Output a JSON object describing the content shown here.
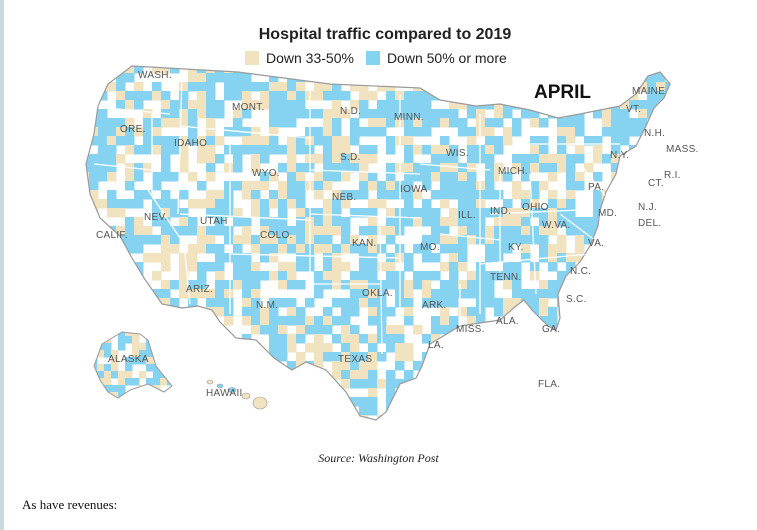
{
  "map": {
    "title": "Hospital traffic compared to 2019",
    "legend": [
      {
        "label": "Down 33-50%",
        "color": "#f2e3c0"
      },
      {
        "label": "Down 50% or more",
        "color": "#85d3f1"
      }
    ],
    "month": "APRIL",
    "state_labels": {
      "wash": "WASH.",
      "ore": "ORE.",
      "idaho": "IDAHO",
      "mont": "MONT.",
      "wyo": "WYO.",
      "nev": "NEV.",
      "calif": "CALIF.",
      "utah": "UTAH",
      "colo": "COLO.",
      "ariz": "ARIZ.",
      "nm": "N.M.",
      "nd": "N.D.",
      "sd": "S.D.",
      "neb": "NEB.",
      "kan": "KAN.",
      "okla": "OKLA.",
      "texas": "TEXAS",
      "minn": "MINN.",
      "iowa": "IOWA",
      "mo": "MO.",
      "ark": "ARK.",
      "la": "LA.",
      "wis": "WIS.",
      "ill": "ILL.",
      "mich": "MICH.",
      "ind": "IND.",
      "ohio": "OHIO",
      "ky": "KY.",
      "tenn": "TENN.",
      "miss": "MISS.",
      "ala": "ALA.",
      "ga": "GA.",
      "fla": "FLA.",
      "sc": "S.C.",
      "nc": "N.C.",
      "va": "VA.",
      "wva": "W.VA.",
      "pa": "PA.",
      "ny": "N.Y.",
      "md": "MD.",
      "nj": "N.J.",
      "del": "DEL.",
      "ct": "CT.",
      "ri": "R.I.",
      "mass": "MASS.",
      "vt": "VT.",
      "nh": "N.H.",
      "maine": "MAINE",
      "alaska": "ALASKA",
      "hawaii": "HAWAII"
    },
    "colors": {
      "blue": "#85d3f1",
      "tan": "#f2e3c0",
      "outline": "#9a9a9a",
      "background": "#ffffff"
    }
  },
  "source": "Source: Washington Post",
  "caption": "As have revenues:"
}
